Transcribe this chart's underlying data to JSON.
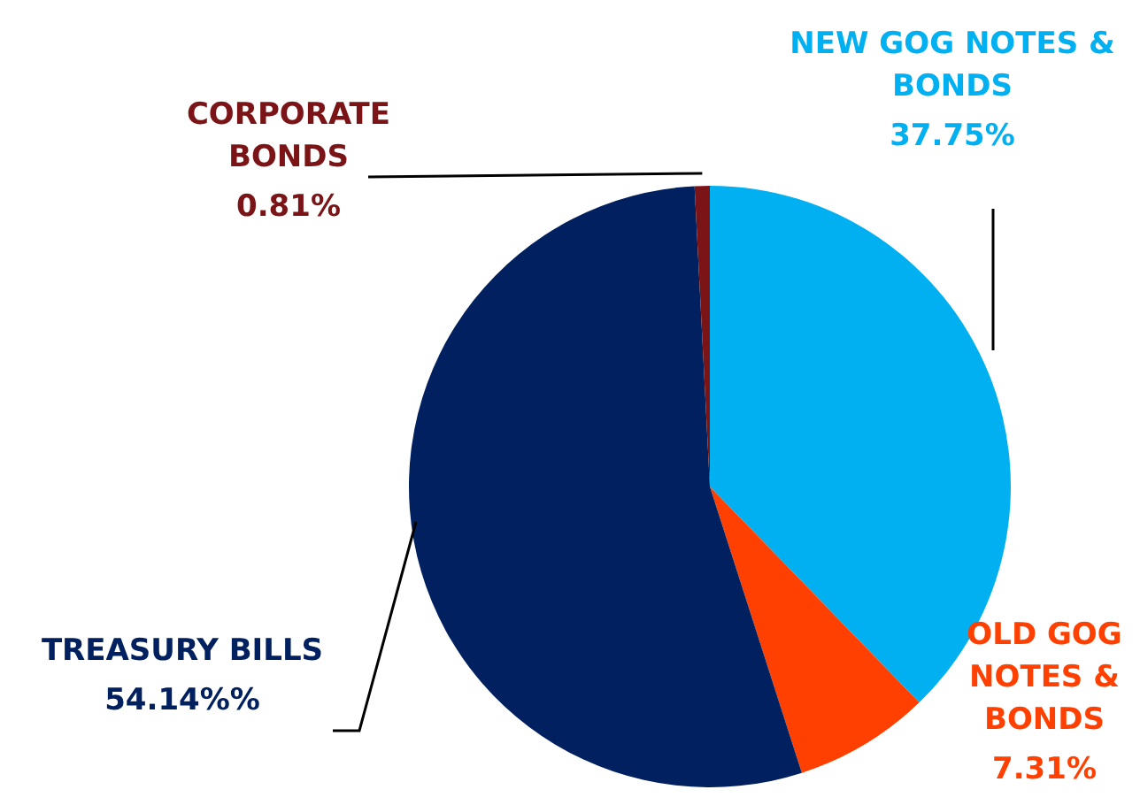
{
  "chart_data": {
    "type": "pie",
    "categories": [
      "NEW GOG NOTES & BONDS",
      "OLD GOG NOTES & BONDS",
      "TREASURY BILLS",
      "CORPORATE BONDS"
    ],
    "values": [
      37.75,
      7.31,
      54.14,
      0.81
    ],
    "colors": [
      "#00b0f0",
      "#ff4000",
      "#002060",
      "#7b1416"
    ],
    "value_labels": [
      "37.75%",
      "7.31%",
      "54.14%%",
      "0.81%"
    ]
  }
}
